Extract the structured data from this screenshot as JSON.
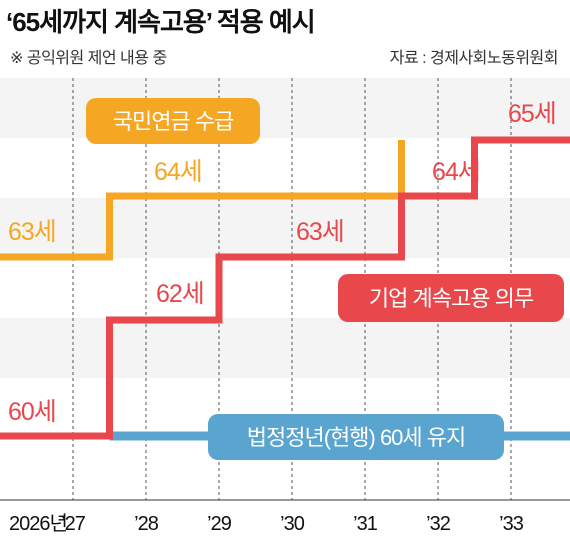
{
  "header": {
    "title": "‘65세까지 계속고용’ 적용 예시",
    "note": "※ 공익위원 제언 내용 중",
    "source": "자료 : 경제사회노동위원회"
  },
  "chart_data": {
    "type": "line",
    "step": true,
    "x_ticks": [
      "2026년",
      "’27",
      "’28",
      "’29",
      "’30",
      "’31",
      "’32",
      "’33"
    ],
    "grid": "vertical dashed",
    "series": [
      {
        "name": "국민연금 수급",
        "color": "#f5a623",
        "points": [
          {
            "x": 2026,
            "y": 63
          },
          {
            "x": 2027.5,
            "y": 64
          },
          {
            "x": 2031.5,
            "y": 64
          },
          {
            "x": 2033,
            "y": 65
          }
        ],
        "labels": [
          "63세",
          "64세"
        ]
      },
      {
        "name": "기업 계속고용 의무",
        "color": "#e8474c",
        "points": [
          {
            "x": 2026,
            "y": 60
          },
          {
            "x": 2027.5,
            "y": 62
          },
          {
            "x": 2029,
            "y": 63
          },
          {
            "x": 2031.5,
            "y": 64
          },
          {
            "x": 2032.5,
            "y": 65
          }
        ],
        "labels": [
          "60세",
          "62세",
          "63세",
          "64세",
          "65세"
        ]
      },
      {
        "name": "법정정년(현행) 60세 유지",
        "color": "#5aa4d0",
        "points": [
          {
            "x": 2027.5,
            "y": 60
          },
          {
            "x": 2033.7,
            "y": 60
          }
        ],
        "labels": []
      }
    ]
  }
}
